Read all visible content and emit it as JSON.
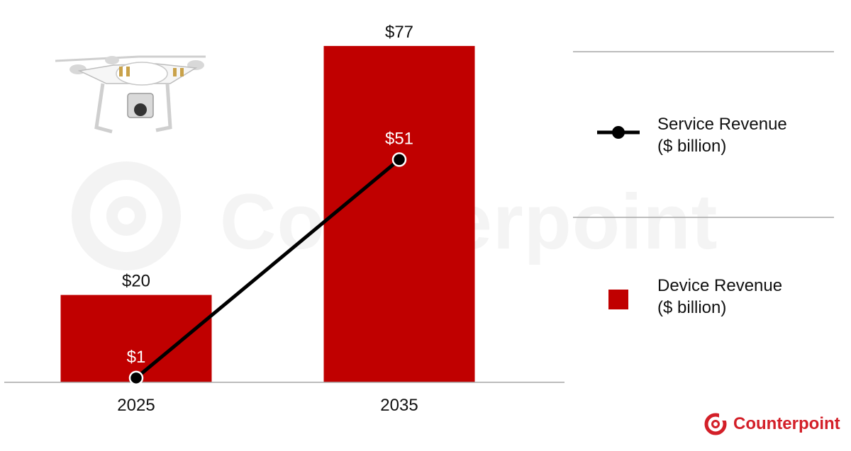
{
  "chart_data": {
    "type": "bar",
    "categories": [
      "2025",
      "2035"
    ],
    "series": [
      {
        "name": "Device Revenue",
        "kind": "bar",
        "values": [
          20,
          77
        ],
        "labels": [
          "$20",
          "$77"
        ],
        "color": "#c00000"
      },
      {
        "name": "Service Revenue",
        "kind": "line",
        "values": [
          1,
          51
        ],
        "labels": [
          "$1",
          "$51"
        ],
        "color": "#000000"
      }
    ],
    "ylim": [
      0,
      80
    ],
    "grid": false,
    "legend_position": "right"
  },
  "legend": {
    "service_line1": "Service Revenue",
    "service_line2": "($ billion)",
    "device_line1": "Device Revenue",
    "device_line2": "($ billion)"
  },
  "brand": {
    "name": "Counterpoint",
    "color": "#d31f28"
  },
  "watermark": {
    "text": "Counterpoint"
  }
}
